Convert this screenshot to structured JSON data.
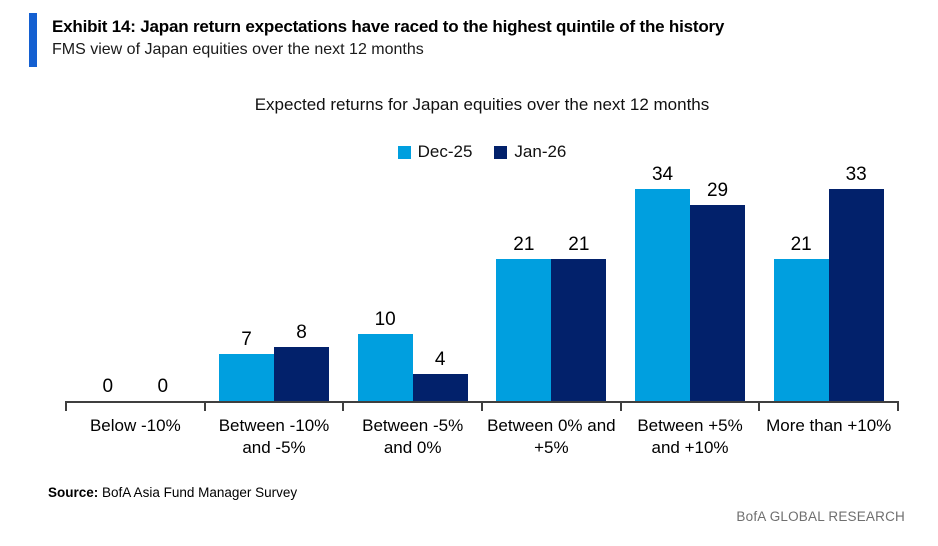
{
  "header": {
    "exhibit_title": "Exhibit 14: Japan return expectations have raced to the highest quintile of the history",
    "subtitle": "FMS view of Japan equities over the next 12 months"
  },
  "chart_data": {
    "type": "bar",
    "title": "Expected returns for Japan equities over the next 12 months",
    "categories": [
      "Below -10%",
      "Between -10% and -5%",
      "Between -5% and 0%",
      "Between 0% and +5%",
      "Between +5% and +10%",
      "More than +10%"
    ],
    "series": [
      {
        "name": "Dec-25",
        "color": "#009fdf",
        "values": [
          0,
          7,
          10,
          21,
          34,
          21
        ]
      },
      {
        "name": "Jan-26",
        "color": "#02216b",
        "values": [
          0,
          8,
          4,
          21,
          29,
          33
        ]
      }
    ],
    "ylim": [
      0,
      35
    ],
    "grid": "off",
    "legend_position": "top-center",
    "value_labels": "above-bars",
    "xlabel": "",
    "ylabel": ""
  },
  "footer": {
    "source_label": "Source:",
    "source_text": "BofA Asia Fund Manager Survey",
    "branding": "BofA GLOBAL RESEARCH"
  },
  "colors": {
    "accent_bar": "#1460d1",
    "series_dec25": "#009fdf",
    "series_jan26": "#02216b",
    "axis": "#3f3f3f",
    "branding_text": "#6f6f6f"
  }
}
